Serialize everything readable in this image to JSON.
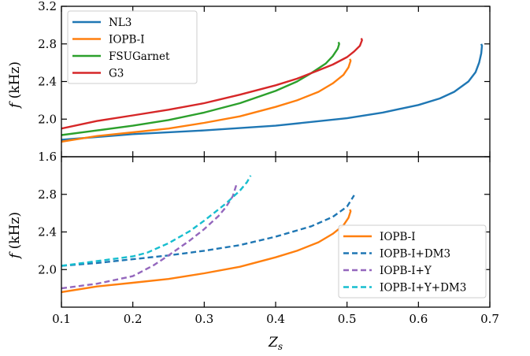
{
  "chart_data": [
    {
      "type": "line",
      "panel": "top",
      "xlabel": "",
      "ylabel_main": "f",
      "ylabel_unit": "(kHz)",
      "xlim": [
        0.1,
        0.7
      ],
      "ylim": [
        1.6,
        3.2
      ],
      "xticks": [
        0.1,
        0.2,
        0.3,
        0.4,
        0.5,
        0.6,
        0.7
      ],
      "yticks": [
        1.6,
        2.0,
        2.4,
        2.8,
        3.2
      ],
      "ytick_labels": [
        "1.6",
        "2.0",
        "2.4",
        "2.8",
        "3.2"
      ],
      "grid": false,
      "legend_position": "top-left",
      "series": [
        {
          "name": "NL3",
          "color": "#1f77b4",
          "dash": "solid",
          "x": [
            0.1,
            0.2,
            0.3,
            0.4,
            0.5,
            0.55,
            0.6,
            0.63,
            0.65,
            0.67,
            0.68,
            0.685,
            0.688,
            0.689,
            0.688
          ],
          "y": [
            1.78,
            1.84,
            1.88,
            1.93,
            2.01,
            2.07,
            2.15,
            2.22,
            2.29,
            2.4,
            2.5,
            2.6,
            2.7,
            2.78,
            2.8
          ]
        },
        {
          "name": "IOPB-I",
          "color": "#ff7f0e",
          "dash": "solid",
          "x": [
            0.1,
            0.15,
            0.2,
            0.25,
            0.3,
            0.35,
            0.4,
            0.43,
            0.46,
            0.48,
            0.495,
            0.502,
            0.505,
            0.504
          ],
          "y": [
            1.76,
            1.82,
            1.86,
            1.9,
            1.96,
            2.03,
            2.13,
            2.2,
            2.29,
            2.38,
            2.47,
            2.55,
            2.62,
            2.64
          ]
        },
        {
          "name": "FSUGarnet",
          "color": "#2ca02c",
          "dash": "solid",
          "x": [
            0.1,
            0.15,
            0.2,
            0.25,
            0.3,
            0.35,
            0.4,
            0.43,
            0.45,
            0.47,
            0.48,
            0.487,
            0.489,
            0.488
          ],
          "y": [
            1.83,
            1.88,
            1.93,
            1.99,
            2.07,
            2.17,
            2.3,
            2.4,
            2.49,
            2.59,
            2.67,
            2.75,
            2.8,
            2.82
          ]
        },
        {
          "name": "G3",
          "color": "#d62728",
          "dash": "solid",
          "x": [
            0.1,
            0.15,
            0.2,
            0.25,
            0.3,
            0.35,
            0.4,
            0.43,
            0.46,
            0.48,
            0.5,
            0.51,
            0.518,
            0.521,
            0.52
          ],
          "y": [
            1.9,
            1.98,
            2.04,
            2.1,
            2.17,
            2.26,
            2.36,
            2.43,
            2.52,
            2.58,
            2.66,
            2.72,
            2.78,
            2.84,
            2.86
          ]
        }
      ]
    },
    {
      "type": "line",
      "panel": "bottom",
      "xlabel": "Z",
      "xlabel_sub": "s",
      "ylabel_main": "f",
      "ylabel_unit": "(kHz)",
      "xlim": [
        0.1,
        0.7
      ],
      "ylim": [
        1.6,
        3.2
      ],
      "xticks": [
        0.1,
        0.2,
        0.3,
        0.4,
        0.5,
        0.6,
        0.7
      ],
      "xtick_labels": [
        "0.1",
        "0.2",
        "0.3",
        "0.4",
        "0.5",
        "0.6",
        "0.7"
      ],
      "yticks": [
        2.0,
        2.4,
        2.8
      ],
      "ytick_labels": [
        "2.0",
        "2.4",
        "2.8"
      ],
      "grid": false,
      "legend_position": "lower-right",
      "series": [
        {
          "name": "IOPB-I",
          "color": "#ff7f0e",
          "dash": "solid",
          "x": [
            0.1,
            0.15,
            0.2,
            0.25,
            0.3,
            0.35,
            0.4,
            0.43,
            0.46,
            0.48,
            0.495,
            0.502,
            0.505,
            0.504
          ],
          "y": [
            1.76,
            1.82,
            1.86,
            1.9,
            1.96,
            2.03,
            2.13,
            2.2,
            2.29,
            2.38,
            2.47,
            2.55,
            2.62,
            2.64
          ]
        },
        {
          "name": "IOPB-I+DM3",
          "color": "#1f77b4",
          "dash": "dashed",
          "x": [
            0.1,
            0.15,
            0.2,
            0.25,
            0.3,
            0.35,
            0.4,
            0.45,
            0.48,
            0.5,
            0.51
          ],
          "y": [
            2.04,
            2.07,
            2.11,
            2.15,
            2.2,
            2.26,
            2.35,
            2.46,
            2.56,
            2.67,
            2.79
          ]
        },
        {
          "name": "IOPB-I+Y",
          "color": "#9467bd",
          "dash": "dashed",
          "x": [
            0.1,
            0.15,
            0.2,
            0.23,
            0.25,
            0.28,
            0.3,
            0.32,
            0.33,
            0.34,
            0.345
          ],
          "y": [
            1.8,
            1.85,
            1.93,
            2.05,
            2.15,
            2.31,
            2.43,
            2.57,
            2.66,
            2.78,
            2.9
          ]
        },
        {
          "name": "IOPB-I+Y+DM3",
          "color": "#17becf",
          "dash": "dashed",
          "x": [
            0.1,
            0.15,
            0.2,
            0.22,
            0.25,
            0.28,
            0.3,
            0.33,
            0.35,
            0.36,
            0.365
          ],
          "y": [
            2.04,
            2.09,
            2.14,
            2.18,
            2.28,
            2.41,
            2.52,
            2.7,
            2.84,
            2.93,
            3.0
          ]
        }
      ]
    }
  ]
}
